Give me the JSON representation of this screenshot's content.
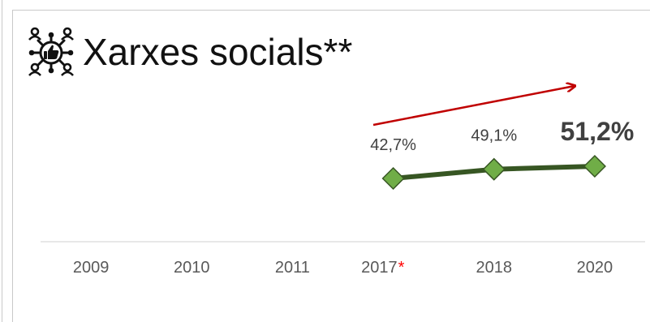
{
  "title": "Xarxes socials**",
  "icon": "social-network-thumbs-up-icon",
  "colors": {
    "line": "#375623",
    "marker_fill": "#70ad47",
    "marker_stroke": "#375623",
    "trend_arrow": "#c00000",
    "asterisk": "#ff0000",
    "axis": "#d9d9d9"
  },
  "chart_data": {
    "type": "line",
    "categories": [
      "2009",
      "2010",
      "2011",
      "2017",
      "2018",
      "2020"
    ],
    "category_markers": {
      "2017": "*"
    },
    "series": [
      {
        "values": [
          null,
          null,
          null,
          42.7,
          49.1,
          51.2
        ],
        "labels": [
          "",
          "",
          "",
          "42,7%",
          "49,1%",
          "51,2%"
        ]
      }
    ],
    "emphasized_label": "51,2%",
    "trend_arrow": "increasing",
    "ylim": [
      0,
      60
    ],
    "grid": false,
    "legend": "none"
  }
}
